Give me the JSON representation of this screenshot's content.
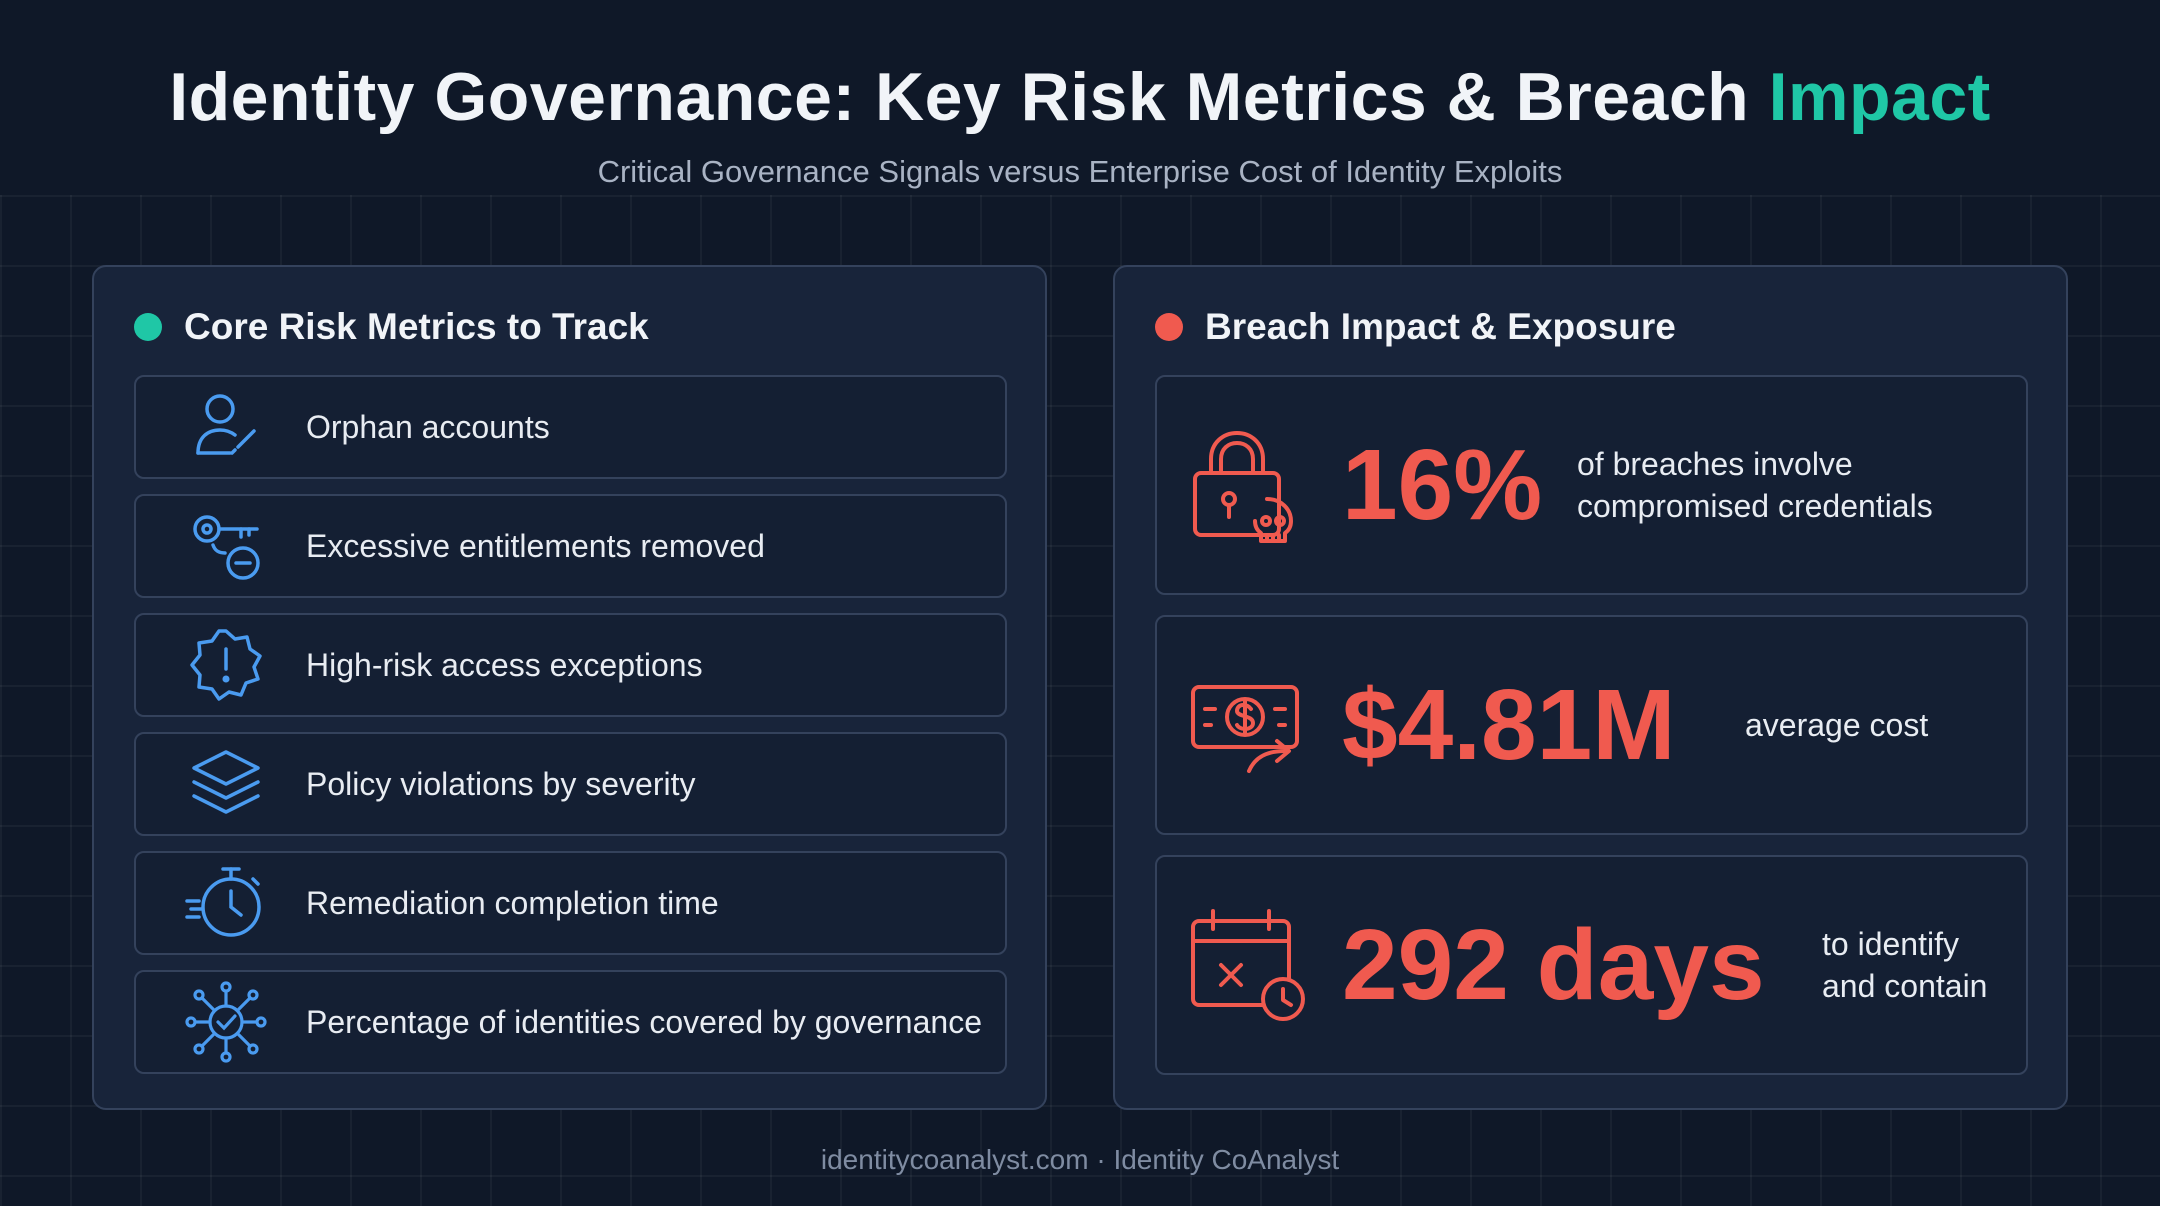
{
  "header": {
    "title_main": "Identity Governance: Key Risk Metrics & Breach",
    "title_accent": "Impact",
    "subtitle": "Critical Governance Signals versus Enterprise Cost of Identity Exploits"
  },
  "colors": {
    "accent_teal": "#1fc7a6",
    "accent_red": "#f05a4f",
    "icon_blue": "#4a9bf0",
    "background": "#0f1828",
    "panel": "#18243a"
  },
  "left_panel": {
    "title": "Core Risk Metrics to Track",
    "items": [
      {
        "icon": "user-slash-icon",
        "label": "Orphan accounts"
      },
      {
        "icon": "key-minus-icon",
        "label": "Excessive entitlements removed"
      },
      {
        "icon": "alert-badge-icon",
        "label": "High-risk access exceptions"
      },
      {
        "icon": "layers-icon",
        "label": "Policy violations by severity"
      },
      {
        "icon": "stopwatch-icon",
        "label": "Remediation completion time"
      },
      {
        "icon": "network-check-icon",
        "label": "Percentage of identities covered by governance"
      }
    ]
  },
  "right_panel": {
    "title": "Breach Impact & Exposure",
    "items": [
      {
        "icon": "lock-skull-icon",
        "value": "16%",
        "line1": "of breaches involve",
        "line2": "compromised credentials"
      },
      {
        "icon": "money-transfer-icon",
        "value": "$4.81M",
        "line1": "average cost",
        "line2": ""
      },
      {
        "icon": "calendar-clock-icon",
        "value": "292 days",
        "line1": "to identify",
        "line2": "and contain"
      }
    ]
  },
  "footer": {
    "text": "identitycoanalyst.com · Identity CoAnalyst"
  }
}
